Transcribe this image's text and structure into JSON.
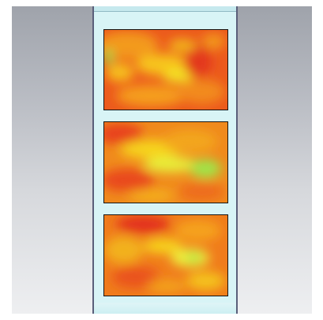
{
  "viewport": {
    "background_top": "#9fa3ab",
    "background_bottom": "#eeeff1"
  },
  "column": {
    "fill_color": "#d8f4f6",
    "edge_color": "#5a5f7a"
  },
  "heatmap_colors": {
    "hot": "#e8401b",
    "warm": "#f39a1a",
    "mild": "#f2e21e",
    "cool": "#a8e84a",
    "coolest": "#7bdc4e"
  },
  "panels": [
    {
      "name": "panel-top",
      "dominant_level": "hot"
    },
    {
      "name": "panel-middle",
      "dominant_level": "warm"
    },
    {
      "name": "panel-bottom",
      "dominant_level": "warm"
    }
  ]
}
